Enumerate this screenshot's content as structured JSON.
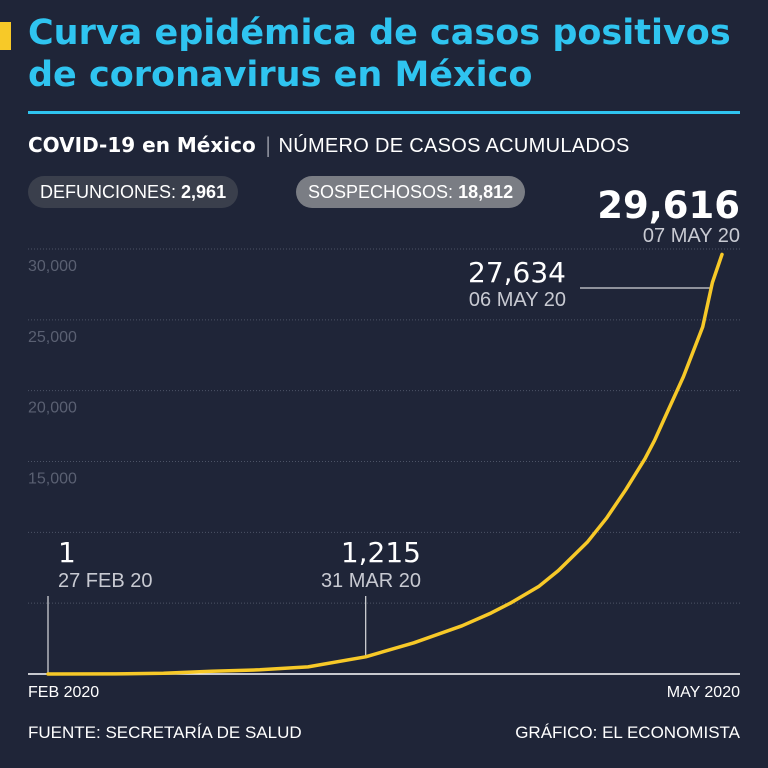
{
  "header": {
    "title_line1": "Curva epidémica de casos positivos",
    "title_line2": "de coronavirus en México",
    "subtitle_main": "COVID-19 en México",
    "subtitle_separator": "|",
    "subtitle_unit": "NÚMERO DE CASOS ACUMULADOS"
  },
  "badges": {
    "deaths_label": "DEFUNCIONES:",
    "deaths_value": "2,961",
    "suspected_label": "SOSPECHOSOS:",
    "suspected_value": "18,812"
  },
  "colors": {
    "background": "#1f2538",
    "accent": "#f7c928",
    "title": "#2fc4f0",
    "line": "#f7c928",
    "grid": "#4c5366",
    "axis": "#ffffff",
    "tick_label": "#5a6072"
  },
  "chart_data": {
    "type": "line",
    "xlabel": "",
    "ylabel": "",
    "x_start_label": "FEB 2020",
    "x_end_label": "MAY 2020",
    "xlim": [
      "2020-02-27",
      "2020-05-07"
    ],
    "ylim": [
      0,
      30000
    ],
    "yticks": [
      5000,
      10000,
      15000,
      20000,
      25000,
      30000
    ],
    "ytick_labels": [
      "",
      "",
      "15,000",
      "20,000",
      "25,000",
      "30,000"
    ],
    "grid": true,
    "series": [
      {
        "x": [
          "2020-02-27",
          "2020-03-05",
          "2020-03-10",
          "2020-03-15",
          "2020-03-20",
          "2020-03-25",
          "2020-03-31",
          "2020-04-05",
          "2020-04-10",
          "2020-04-13",
          "2020-04-15",
          "2020-04-18",
          "2020-04-20",
          "2020-04-23",
          "2020-04-25",
          "2020-04-27",
          "2020-04-29",
          "2020-04-30",
          "2020-05-01",
          "2020-05-03",
          "2020-05-05",
          "2020-05-06",
          "2020-05-07"
        ],
        "y": [
          1,
          10,
          50,
          200,
          300,
          500,
          1215,
          2200,
          3400,
          4300,
          5000,
          6200,
          7300,
          9300,
          11000,
          13000,
          15200,
          16500,
          18000,
          21000,
          24500,
          27634,
          29616
        ]
      }
    ],
    "annotations": [
      {
        "value": "1",
        "date": "27 FEB 20",
        "x": "2020-02-27",
        "y": 1
      },
      {
        "value": "1,215",
        "date": "31 MAR 20",
        "x": "2020-03-31",
        "y": 1215
      },
      {
        "value": "27,634",
        "date": "06 MAY 20",
        "x": "2020-05-06",
        "y": 27634
      },
      {
        "value": "29,616",
        "date": "07 MAY 20",
        "x": "2020-05-07",
        "y": 29616
      }
    ]
  },
  "footer": {
    "source": "FUENTE: SECRETARÍA DE SALUD",
    "credit": "GRÁFICO: EL ECONOMISTA"
  }
}
